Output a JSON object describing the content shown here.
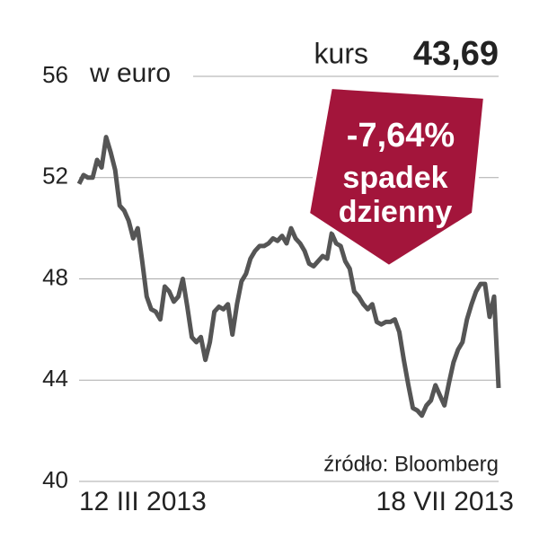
{
  "chart_data": {
    "type": "line",
    "y_axis_label": "w euro",
    "price_label": "kurs",
    "price_value": "43,69",
    "change": "-7,64%",
    "change_text": [
      "spadek",
      "dzienny"
    ],
    "source": "źródło: Bloomberg",
    "categories": [
      "12 III 2013",
      null,
      null,
      null,
      null,
      null,
      null,
      null,
      null,
      null,
      null,
      null,
      null,
      null,
      null,
      null,
      null,
      null,
      null,
      null,
      null,
      null,
      null,
      null,
      null,
      null,
      null,
      null,
      null,
      null,
      null,
      null,
      null,
      null,
      null,
      null,
      null,
      null,
      null,
      null,
      null,
      null,
      null,
      null,
      null,
      null,
      null,
      null,
      null,
      null,
      null,
      null,
      null,
      null,
      null,
      null,
      null,
      null,
      null,
      null,
      null,
      null,
      null,
      null,
      null,
      null,
      null,
      null,
      null,
      null,
      null,
      null,
      null,
      null,
      null,
      null,
      null,
      null,
      null,
      null,
      null,
      null,
      null,
      null,
      null,
      null,
      null,
      null,
      null,
      null,
      null,
      null,
      null,
      "18 VII 2013"
    ],
    "series": [
      {
        "name": "kurs",
        "color": "#555555",
        "values": [
          51.75,
          52.1,
          52.0,
          52.0,
          52.7,
          52.4,
          53.6,
          53.0,
          52.3,
          50.9,
          50.7,
          50.3,
          49.6,
          50.0,
          48.7,
          47.3,
          46.8,
          46.7,
          46.4,
          47.7,
          47.5,
          47.1,
          47.3,
          48.0,
          46.9,
          45.7,
          45.5,
          45.7,
          44.8,
          45.5,
          46.7,
          46.9,
          46.8,
          47.0,
          45.8,
          47.0,
          47.9,
          48.2,
          48.8,
          49.1,
          49.3,
          49.3,
          49.4,
          49.6,
          49.5,
          49.7,
          49.4,
          50.0,
          49.6,
          49.4,
          49.1,
          48.6,
          48.5,
          48.7,
          48.9,
          48.8,
          49.8,
          49.4,
          49.3,
          48.7,
          48.4,
          47.5,
          47.3,
          47.0,
          46.8,
          47.0,
          46.3,
          46.2,
          46.3,
          46.3,
          46.4,
          45.9,
          44.8,
          43.8,
          42.9,
          42.8,
          42.6,
          43.0,
          43.2,
          43.8,
          43.4,
          43.0,
          43.9,
          44.7,
          45.2,
          45.5,
          46.4,
          47.0,
          47.5,
          47.8,
          47.8,
          46.5,
          47.3,
          43.69
        ]
      }
    ],
    "callout_color": "#a3153b",
    "ylim": [
      40,
      56
    ],
    "yticks": [
      40,
      44,
      48,
      52,
      56
    ],
    "grid": true
  }
}
